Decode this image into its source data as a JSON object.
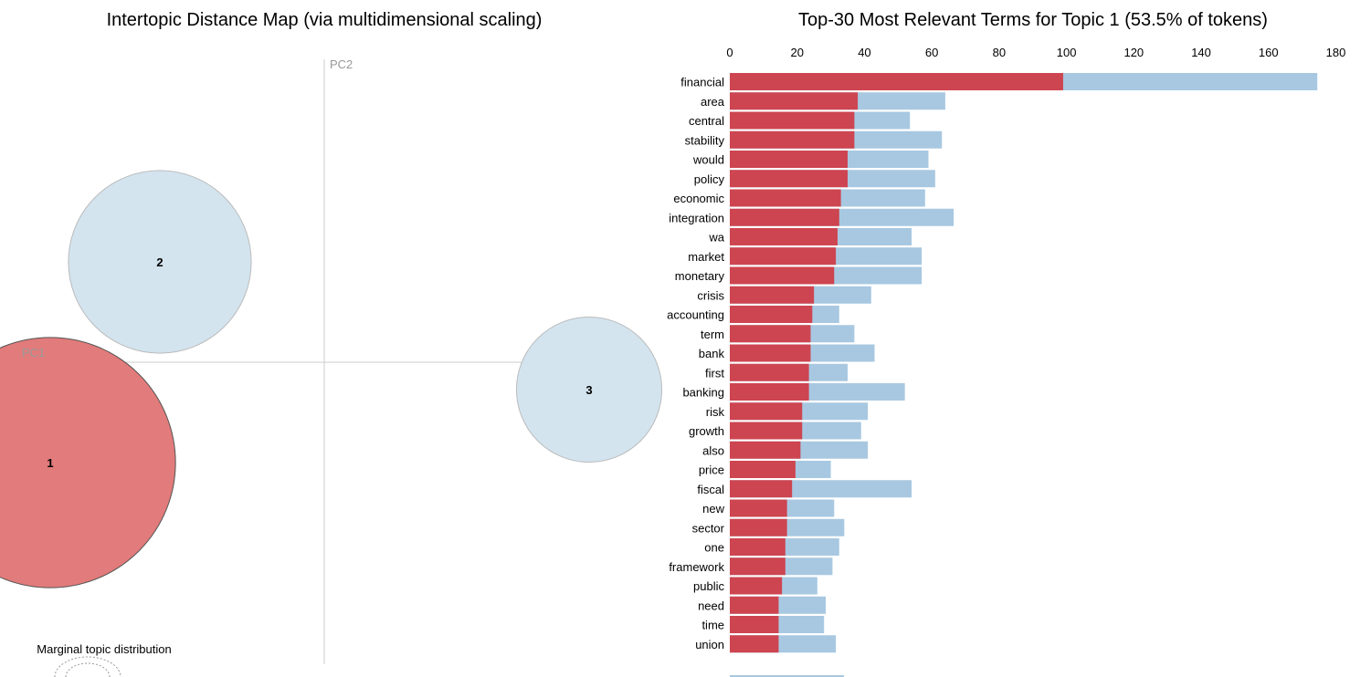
{
  "chart_data": [
    {
      "type": "scatter",
      "title": "Intertopic Distance Map (via multidimensional scaling)",
      "xlabel": "PC1",
      "ylabel": "PC2",
      "topics": [
        {
          "label": "1",
          "pc1": -0.3,
          "pc2": -0.11,
          "tokens_pct": 53.5,
          "selected": true
        },
        {
          "label": "2",
          "pc1": -0.18,
          "pc2": 0.11,
          "tokens_pct": 28.5,
          "selected": false
        },
        {
          "label": "3",
          "pc1": 0.29,
          "pc2": -0.03,
          "tokens_pct": 18.0,
          "selected": false
        }
      ],
      "footer_label": "Marginal topic distribution",
      "colors": {
        "selected": "#e27b7b",
        "unselected": "#d3e4ef"
      }
    },
    {
      "type": "bar",
      "orientation": "horizontal",
      "title": "Top-30 Most Relevant Terms for Topic 1 (53.5% of tokens)",
      "xlim": [
        0,
        180
      ],
      "xticks": [
        0,
        20,
        40,
        60,
        80,
        100,
        120,
        140,
        160,
        180
      ],
      "categories": [
        "financial",
        "area",
        "central",
        "stability",
        "would",
        "policy",
        "economic",
        "integration",
        "wa",
        "market",
        "monetary",
        "crisis",
        "accounting",
        "term",
        "bank",
        "first",
        "banking",
        "risk",
        "growth",
        "also",
        "price",
        "fiscal",
        "new",
        "sector",
        "one",
        "framework",
        "public",
        "need",
        "time",
        "union"
      ],
      "series": [
        {
          "key": "topic",
          "color": "#cd4550",
          "values": [
            99,
            38,
            37,
            37,
            35,
            35,
            33,
            32.5,
            32,
            31.5,
            31,
            25,
            24.5,
            24,
            24,
            23.5,
            23.5,
            21.5,
            21.5,
            21,
            19.5,
            18.5,
            17,
            17,
            16.5,
            16.5,
            15.5,
            14.5,
            14.5,
            14.5
          ]
        },
        {
          "key": "overall",
          "color": "#a8c8e1",
          "values": [
            174.5,
            64,
            53.5,
            63,
            59,
            61,
            58,
            66.5,
            54,
            57,
            57,
            42,
            32.5,
            37,
            43,
            35,
            52,
            41,
            39,
            41,
            30,
            54,
            31,
            34,
            32.5,
            30.5,
            26,
            28.5,
            28,
            31.5
          ]
        }
      ]
    }
  ]
}
